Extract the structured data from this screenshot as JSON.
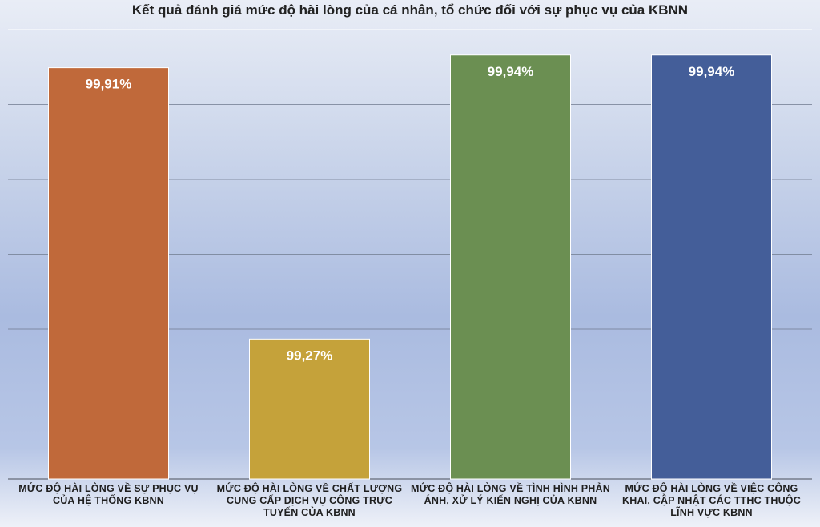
{
  "chart_data": {
    "type": "bar",
    "title": "Kết quả đánh giá mức độ hài lòng của cá nhân, tổ chức đối với sự phục vụ của KBNN",
    "xlabel": "",
    "ylabel": "",
    "grid": true,
    "legend": "none",
    "ylim": [
      98.94,
      100.0
    ],
    "categories": [
      "MỨC ĐỘ HÀI LÒNG VỀ SỰ PHỤC VỤ CỦA HỆ THỐNG KBNN",
      "MỨC ĐỘ HÀI LÒNG VỀ CHẤT LƯỢNG CUNG CẤP DỊCH VỤ CÔNG TRỰC TUYẾN CỦA KBNN",
      "MỨC ĐỘ HÀI LÒNG VỀ TÌNH HÌNH PHẢN ÁNH, XỬ LÝ KIẾN NGHỊ CỦA KBNN",
      "MỨC ĐỘ HÀI LÒNG VỀ VIỆC CÔNG KHAI, CẬP NHẬT CÁC TTHC THUỘC LĨNH VỰC KBNN"
    ],
    "values": [
      99.91,
      99.27,
      99.94,
      99.94
    ],
    "data_labels": [
      "99,91%",
      "99,27%",
      "99,94%",
      "99,94%"
    ],
    "colors": [
      "#c0693a",
      "#c5a23a",
      "#6b8f52",
      "#445e99"
    ]
  }
}
